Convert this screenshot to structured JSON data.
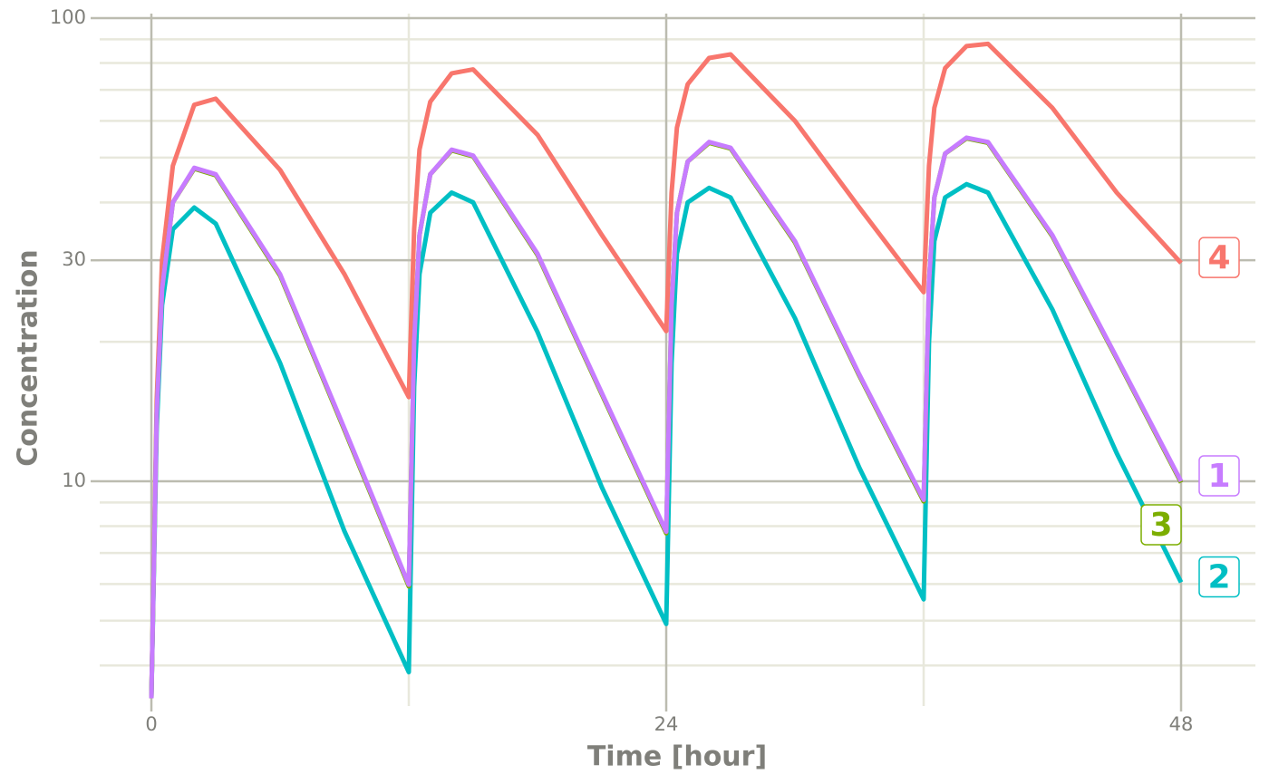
{
  "chart_data": {
    "type": "line",
    "log_y": true,
    "xlabel": "Time [hour]",
    "ylabel": "Concentration",
    "x": [
      0,
      0.25,
      0.5,
      1,
      2,
      3,
      6,
      9,
      12,
      12.25,
      12.5,
      13,
      14,
      15,
      18,
      21,
      24,
      24.25,
      24.5,
      25,
      26,
      27,
      30,
      33,
      36,
      36.25,
      36.5,
      37,
      38,
      39,
      42,
      45,
      48
    ],
    "series": [
      {
        "name": "4",
        "color": "#F8766D",
        "values": [
          3.4,
          15,
          30,
          48,
          65,
          67,
          47,
          28,
          15.2,
          35,
          52,
          66,
          76,
          77.5,
          56,
          34,
          21.1,
          42,
          58,
          72,
          82,
          83.5,
          60,
          39,
          25.6,
          48,
          64,
          78,
          87,
          88,
          64,
          42,
          29.6
        ]
      },
      {
        "name": "2",
        "color": "#00BFC4",
        "values": [
          3.4,
          13,
          24,
          35,
          39,
          36,
          18,
          7.8,
          3.87,
          16,
          28,
          38,
          42,
          40,
          21,
          9.7,
          4.92,
          18,
          31,
          40,
          43,
          41,
          22.5,
          10.7,
          5.56,
          20,
          33,
          41,
          43.8,
          42,
          23.5,
          11.5,
          6.05
        ]
      },
      {
        "name": "3",
        "color": "#7CAE00",
        "values": [
          3.4,
          14,
          26,
          40,
          47.3,
          45.8,
          27.8,
          12.9,
          5.93,
          20,
          34,
          46,
          51.8,
          50.3,
          30.8,
          15.4,
          7.72,
          24,
          38,
          49,
          53.8,
          52.3,
          32.8,
          16.9,
          9.05,
          27,
          41,
          51,
          55,
          53.8,
          33.8,
          18.4,
          9.93
        ]
      },
      {
        "name": "1",
        "color": "#C77CFF",
        "values": [
          3.4,
          14,
          26,
          40,
          47.5,
          46,
          28,
          13,
          5.98,
          20,
          34,
          46,
          52,
          50.5,
          31,
          15.5,
          7.78,
          24,
          38,
          49,
          54,
          52.5,
          33,
          17,
          9.12,
          27,
          41,
          51,
          55.2,
          54,
          34,
          18.5,
          10
        ]
      }
    ],
    "xlim": [
      0,
      48
    ],
    "xticks": [
      0,
      24,
      48
    ],
    "x_minor_ticks": [
      12,
      36
    ],
    "ylim": [
      3.3,
      100
    ],
    "yticks": [
      10,
      30,
      100
    ],
    "y_minor_ticks": [
      4,
      5,
      6,
      7,
      8,
      9,
      20,
      40,
      50,
      60,
      70,
      80,
      90
    ],
    "grid": true
  }
}
